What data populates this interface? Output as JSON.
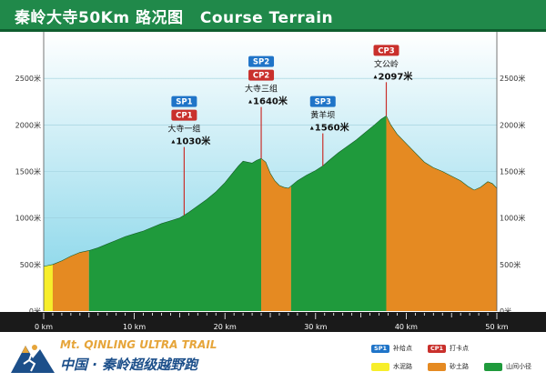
{
  "header": {
    "title_cn": "秦岭大寺50Km 路况图",
    "title_en": "Course Terrain"
  },
  "colors": {
    "header_green": "#20894a",
    "sky_top": "#ffffff",
    "sky_bottom": "#7fd3e8",
    "mountain_green": "#1f9a3c",
    "sand_orange": "#e58a22",
    "cement_yellow": "#f7ee2a",
    "sp_blue": "#1f74c8",
    "cp_red": "#c9302c",
    "marker_line": "#c9302c"
  },
  "chart_data": {
    "type": "area",
    "title": "Course Terrain",
    "xlabel": "",
    "ylabel": "",
    "xlim": [
      0,
      50
    ],
    "ylim": [
      0,
      3000
    ],
    "x_ticks": [
      0,
      10,
      20,
      30,
      40,
      50
    ],
    "x_tick_labels": [
      "0 km",
      "10 km",
      "20 km",
      "30 km",
      "40 km",
      "50 km"
    ],
    "y_ticks": [
      0,
      500,
      1000,
      1500,
      2000,
      2500
    ],
    "y_tick_labels": [
      "0米",
      "500米",
      "1000米",
      "1500米",
      "2000米",
      "2500米"
    ],
    "y_ticks_right": true,
    "grid": true,
    "profile": [
      {
        "x": 0,
        "y": 480
      },
      {
        "x": 0.5,
        "y": 490
      },
      {
        "x": 1.0,
        "y": 500
      },
      {
        "x": 2.0,
        "y": 540
      },
      {
        "x": 3.0,
        "y": 590
      },
      {
        "x": 4.0,
        "y": 630
      },
      {
        "x": 5.0,
        "y": 650
      },
      {
        "x": 6.0,
        "y": 680
      },
      {
        "x": 7.0,
        "y": 720
      },
      {
        "x": 8.0,
        "y": 760
      },
      {
        "x": 9.0,
        "y": 800
      },
      {
        "x": 10.0,
        "y": 830
      },
      {
        "x": 11.0,
        "y": 860
      },
      {
        "x": 12.0,
        "y": 900
      },
      {
        "x": 13.0,
        "y": 940
      },
      {
        "x": 14.0,
        "y": 970
      },
      {
        "x": 15.0,
        "y": 1000
      },
      {
        "x": 15.5,
        "y": 1030
      },
      {
        "x": 16.0,
        "y": 1060
      },
      {
        "x": 17.0,
        "y": 1130
      },
      {
        "x": 18.0,
        "y": 1200
      },
      {
        "x": 19.0,
        "y": 1280
      },
      {
        "x": 20.0,
        "y": 1380
      },
      {
        "x": 21.0,
        "y": 1500
      },
      {
        "x": 21.5,
        "y": 1560
      },
      {
        "x": 22.0,
        "y": 1610
      },
      {
        "x": 22.5,
        "y": 1600
      },
      {
        "x": 23.0,
        "y": 1590
      },
      {
        "x": 23.5,
        "y": 1620
      },
      {
        "x": 24.0,
        "y": 1640
      },
      {
        "x": 24.5,
        "y": 1600
      },
      {
        "x": 25.0,
        "y": 1480
      },
      {
        "x": 25.5,
        "y": 1400
      },
      {
        "x": 26.0,
        "y": 1350
      },
      {
        "x": 26.5,
        "y": 1330
      },
      {
        "x": 27.0,
        "y": 1320
      },
      {
        "x": 27.5,
        "y": 1360
      },
      {
        "x": 28.0,
        "y": 1400
      },
      {
        "x": 29.0,
        "y": 1460
      },
      {
        "x": 30.0,
        "y": 1510
      },
      {
        "x": 30.8,
        "y": 1560
      },
      {
        "x": 31.5,
        "y": 1620
      },
      {
        "x": 32.5,
        "y": 1700
      },
      {
        "x": 33.5,
        "y": 1770
      },
      {
        "x": 34.5,
        "y": 1840
      },
      {
        "x": 35.5,
        "y": 1920
      },
      {
        "x": 36.5,
        "y": 2000
      },
      {
        "x": 37.2,
        "y": 2060
      },
      {
        "x": 37.8,
        "y": 2097
      },
      {
        "x": 38.3,
        "y": 2000
      },
      {
        "x": 39.0,
        "y": 1900
      },
      {
        "x": 40.0,
        "y": 1800
      },
      {
        "x": 41.0,
        "y": 1700
      },
      {
        "x": 42.0,
        "y": 1600
      },
      {
        "x": 43.0,
        "y": 1540
      },
      {
        "x": 44.0,
        "y": 1500
      },
      {
        "x": 45.0,
        "y": 1450
      },
      {
        "x": 46.0,
        "y": 1400
      },
      {
        "x": 46.8,
        "y": 1340
      },
      {
        "x": 47.5,
        "y": 1300
      },
      {
        "x": 48.2,
        "y": 1330
      },
      {
        "x": 49.0,
        "y": 1390
      },
      {
        "x": 49.5,
        "y": 1370
      },
      {
        "x": 50.0,
        "y": 1320
      }
    ],
    "segments": [
      {
        "from": 0,
        "to": 1.0,
        "surface": "水泥路",
        "color": "#f7ee2a"
      },
      {
        "from": 1.0,
        "to": 5.0,
        "surface": "砂土路",
        "color": "#e58a22"
      },
      {
        "from": 5.0,
        "to": 24.0,
        "surface": "山间小径",
        "color": "#1f9a3c"
      },
      {
        "from": 24.0,
        "to": 27.3,
        "surface": "砂土路",
        "color": "#e58a22"
      },
      {
        "from": 27.3,
        "to": 37.8,
        "surface": "山间小径",
        "color": "#1f9a3c"
      },
      {
        "from": 37.8,
        "to": 50.0,
        "surface": "砂土路",
        "color": "#e58a22"
      }
    ],
    "markers": [
      {
        "x": 15.5,
        "y": 1030,
        "badges": [
          "SP1",
          "CP1"
        ],
        "name": "大寺一组",
        "elevation": "1030米",
        "badge_top_elev": 2310
      },
      {
        "x": 24.0,
        "y": 1640,
        "badges": [
          "SP2",
          "CP2"
        ],
        "name": "大寺三组",
        "elevation": "1640米",
        "badge_top_elev": 2740
      },
      {
        "x": 30.8,
        "y": 1560,
        "badges": [
          "SP3"
        ],
        "name": "黄羊坝",
        "elevation": "1560米",
        "badge_top_elev": 2310
      },
      {
        "x": 37.8,
        "y": 2097,
        "badges": [
          "CP3"
        ],
        "name": "文公岭",
        "elevation": "2097米",
        "badge_top_elev": 2860
      }
    ]
  },
  "footer": {
    "logo_en": "Mt. QINLING ULTRA TRAIL",
    "logo_cn": "中国 · 秦岭超级越野跑",
    "legend": [
      {
        "badge": "SP1",
        "label": "补给点",
        "color": "#1f74c8"
      },
      {
        "badge": "CP1",
        "label": "打卡点",
        "color": "#c9302c"
      },
      {
        "badge": "",
        "label": "",
        "color": ""
      },
      {
        "badge": "",
        "label": "水泥路",
        "color": "#f7ee2a"
      },
      {
        "badge": "",
        "label": "砂土路",
        "color": "#e58a22"
      },
      {
        "badge": "",
        "label": "山间小径",
        "color": "#1f9a3c"
      }
    ]
  }
}
